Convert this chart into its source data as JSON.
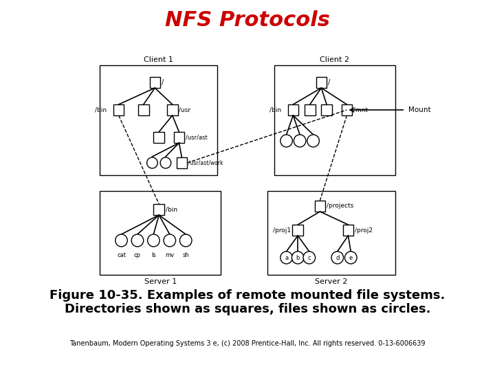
{
  "title": "NFS Protocols",
  "title_color": "#cc0000",
  "title_fontsize": 22,
  "caption_line1": "Figure 10-35. Examples of remote mounted file systems.",
  "caption_line2": "Directories shown as squares, files shown as circles.",
  "caption_fontsize": 13,
  "footer": "Tanenbaum, Modern Operating Systems 3 e, (c) 2008 Prentice-Hall, Inc. All rights reserved. 0-13-",
  "footer_bold": "6006639",
  "footer_fontsize": 7,
  "bg_color": "#ffffff"
}
